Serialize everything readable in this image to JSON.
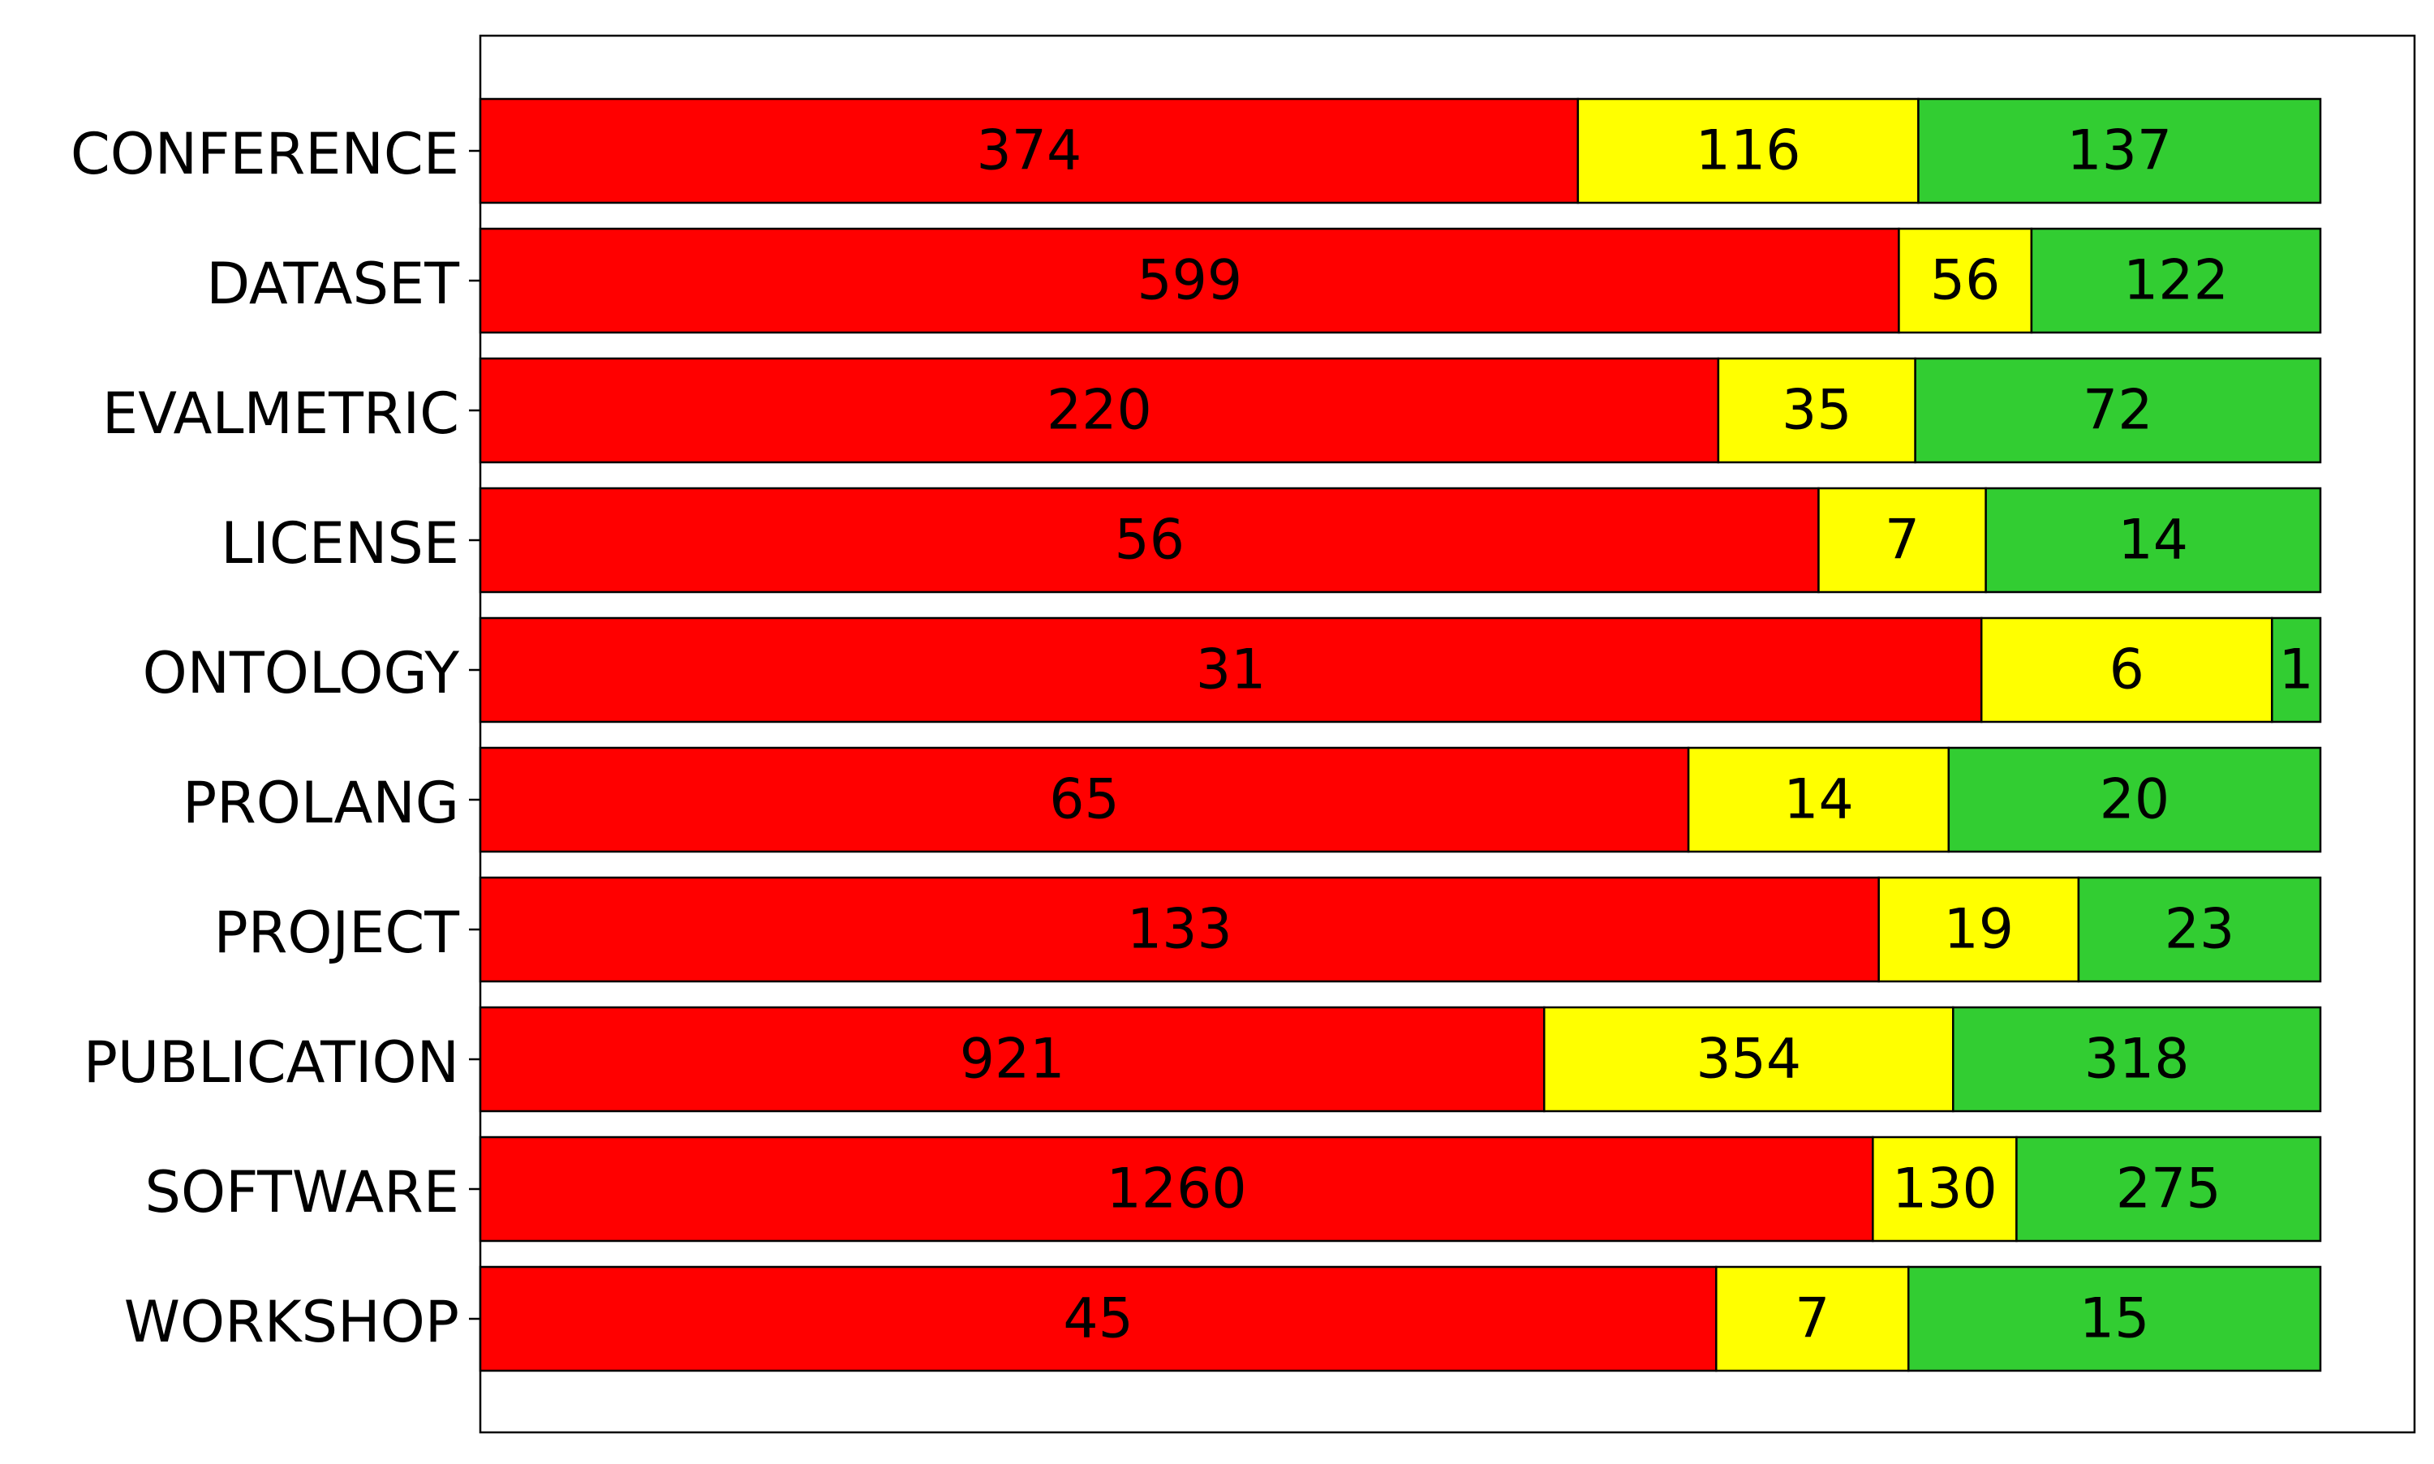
{
  "chart_data": {
    "type": "bar",
    "orientation": "horizontal",
    "stacked": true,
    "normalized": true,
    "title": "",
    "xlabel": "",
    "ylabel": "",
    "grid": false,
    "legend": "none",
    "categories": [
      "CONFERENCE",
      "DATASET",
      "EVALMETRIC",
      "LICENSE",
      "ONTOLOGY",
      "PROLANG",
      "PROJECT",
      "PUBLICATION",
      "SOFTWARE",
      "WORKSHOP"
    ],
    "series": [
      {
        "color": "#ff0000",
        "values": [
          374,
          599,
          220,
          56,
          31,
          65,
          133,
          921,
          1260,
          45
        ]
      },
      {
        "color": "#ffff00",
        "values": [
          116,
          56,
          35,
          7,
          6,
          14,
          19,
          354,
          130,
          7
        ]
      },
      {
        "color": "#32cd32",
        "values": [
          137,
          122,
          72,
          14,
          1,
          20,
          23,
          318,
          275,
          15
        ]
      }
    ]
  }
}
